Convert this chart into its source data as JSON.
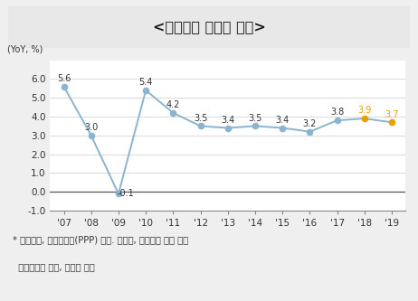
{
  "title": "<세계경제 성장률 추이>",
  "ylabel": "(YoY, %)",
  "years": [
    "'07",
    "'08",
    "'09",
    "'10",
    "'11",
    "'12",
    "'13",
    "'14",
    "'15",
    "'16",
    "'17",
    "'18",
    "'19"
  ],
  "values": [
    5.6,
    3.0,
    -0.1,
    5.4,
    4.2,
    3.5,
    3.4,
    3.5,
    3.4,
    3.2,
    3.8,
    3.9,
    3.7
  ],
  "point_colors": [
    "#8ab4d0",
    "#8ab4d0",
    "#8ab4d0",
    "#8ab4d0",
    "#8ab4d0",
    "#8ab4d0",
    "#8ab4d0",
    "#8ab4d0",
    "#8ab4d0",
    "#8ab4d0",
    "#8ab4d0",
    "#e8a000",
    "#e8a000"
  ],
  "label_colors": [
    "#333333",
    "#333333",
    "#333333",
    "#333333",
    "#333333",
    "#333333",
    "#333333",
    "#333333",
    "#333333",
    "#333333",
    "#333333",
    "#e8a000",
    "#e8a000"
  ],
  "line_color": "#8ab4d0",
  "ylim": [
    -1.0,
    7.0
  ],
  "yticks": [
    -1.0,
    0.0,
    1.0,
    2.0,
    3.0,
    4.0,
    5.0,
    6.0
  ],
  "bg_color": "#efefef",
  "title_bg": "#e8e8e8",
  "plot_bg_color": "#ffffff",
  "border_color": "#aaaaaa",
  "footer_line1": "* 전년대비, 구매력평가(PPP) 기준. 붉은색, 파란색은 각각 전월",
  "footer_line2": "  전망치대비 상승, 하락을 의미"
}
